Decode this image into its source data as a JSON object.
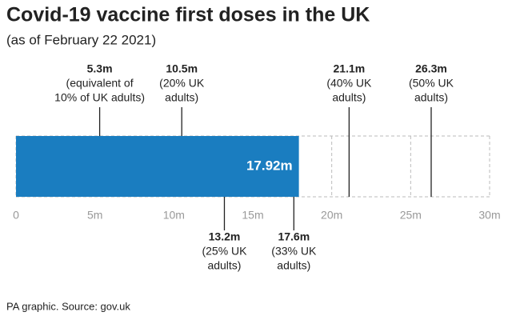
{
  "chart_data": {
    "type": "bar",
    "orientation": "horizontal",
    "title": "Covid-19 vaccine first doses in the UK",
    "subtitle": "(as of February 22 2021)",
    "source": "PA graphic. Source: gov.uk",
    "values": [
      17.92
    ],
    "value_labels": [
      "17.92m"
    ],
    "color": "#1a7dc0",
    "xlim": [
      0,
      30
    ],
    "xticks": [
      0,
      {
        "value": 5,
        "label": "5m"
      },
      {
        "value": 10,
        "label": "10m"
      },
      {
        "value": 15,
        "label": "15m"
      },
      {
        "value": 20,
        "label": "20m"
      },
      {
        "value": 25,
        "label": "25m"
      },
      {
        "value": 30,
        "label": "30m"
      }
    ],
    "grid": true,
    "annotations": [
      {
        "value": 5.3,
        "label": "5.3m",
        "note": [
          "(equivalent of",
          "10% of UK adults)"
        ],
        "position": "above"
      },
      {
        "value": 10.5,
        "label": "10.5m",
        "note": [
          "(20% UK",
          "adults)"
        ],
        "position": "above"
      },
      {
        "value": 13.2,
        "label": "13.2m",
        "note": [
          "(25% UK",
          "adults)"
        ],
        "position": "below"
      },
      {
        "value": 17.6,
        "label": "17.6m",
        "note": [
          "(33% UK",
          "adults)"
        ],
        "position": "below"
      },
      {
        "value": 21.1,
        "label": "21.1m",
        "note": [
          "(40% UK",
          "adults)"
        ],
        "position": "above"
      },
      {
        "value": 26.3,
        "label": "26.3m",
        "note": [
          "(50% UK",
          "adults)"
        ],
        "position": "above"
      }
    ]
  }
}
